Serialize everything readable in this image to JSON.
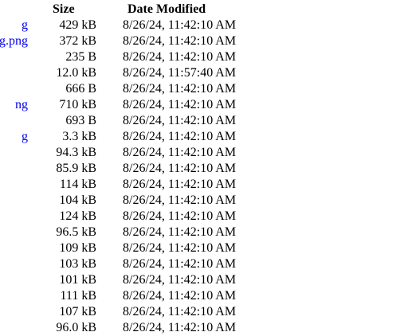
{
  "header": {
    "size_label": "Size",
    "date_label": "Date Modified"
  },
  "rows": [
    {
      "name": "g",
      "size": "429 kB",
      "date": "8/26/24, 11:42:10 AM"
    },
    {
      "name": "g.png",
      "size": "372 kB",
      "date": "8/26/24, 11:42:10 AM"
    },
    {
      "name": "",
      "size": "235 B",
      "date": "8/26/24, 11:42:10 AM"
    },
    {
      "name": "",
      "size": "12.0 kB",
      "date": "8/26/24, 11:57:40 AM"
    },
    {
      "name": "",
      "size": "666 B",
      "date": "8/26/24, 11:42:10 AM"
    },
    {
      "name": "ng",
      "size": "710 kB",
      "date": "8/26/24, 11:42:10 AM"
    },
    {
      "name": "",
      "size": "693 B",
      "date": "8/26/24, 11:42:10 AM"
    },
    {
      "name": "g",
      "size": "3.3 kB",
      "date": "8/26/24, 11:42:10 AM"
    },
    {
      "name": "",
      "size": "94.3 kB",
      "date": "8/26/24, 11:42:10 AM"
    },
    {
      "name": "",
      "size": "85.9 kB",
      "date": "8/26/24, 11:42:10 AM"
    },
    {
      "name": "",
      "size": "114 kB",
      "date": "8/26/24, 11:42:10 AM"
    },
    {
      "name": "",
      "size": "104 kB",
      "date": "8/26/24, 11:42:10 AM"
    },
    {
      "name": "",
      "size": "124 kB",
      "date": "8/26/24, 11:42:10 AM"
    },
    {
      "name": "",
      "size": "96.5 kB",
      "date": "8/26/24, 11:42:10 AM"
    },
    {
      "name": "",
      "size": "109 kB",
      "date": "8/26/24, 11:42:10 AM"
    },
    {
      "name": "",
      "size": "103 kB",
      "date": "8/26/24, 11:42:10 AM"
    },
    {
      "name": "",
      "size": "101 kB",
      "date": "8/26/24, 11:42:10 AM"
    },
    {
      "name": "",
      "size": "111 kB",
      "date": "8/26/24, 11:42:10 AM"
    },
    {
      "name": "",
      "size": "107 kB",
      "date": "8/26/24, 11:42:10 AM"
    },
    {
      "name": "",
      "size": "96.0 kB",
      "date": "8/26/24, 11:42:10 AM"
    }
  ]
}
